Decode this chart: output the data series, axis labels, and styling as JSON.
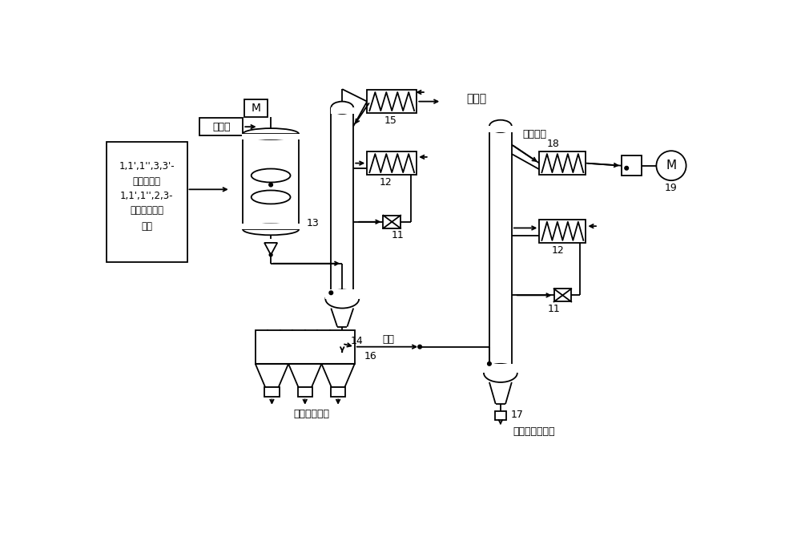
{
  "bg_color": "#ffffff",
  "line_color": "#000000",
  "figsize": [
    10.0,
    6.7
  ],
  "dpi": 100,
  "labels": {
    "catalyst": "催化剂",
    "feed_l1": "1,1',1'',3,3'-",
    "feed_l2": "五氯丙烷和",
    "feed_l3": "1,1',1'',2,3-",
    "feed_l4": "五氯丙烷的混",
    "feed_l5": "合物",
    "hcl": "氯化氢",
    "filter_liquid": "滤液",
    "filter_cake": "滤饼（套用）",
    "vacuum_distill": "减压精馏",
    "product": "四氯丙烯混合物",
    "n13": "13",
    "n14": "14",
    "n15": "15",
    "n16": "16",
    "n17": "17",
    "n18": "18",
    "n19": "19",
    "n11": "11",
    "n12": "12",
    "M": "M"
  }
}
